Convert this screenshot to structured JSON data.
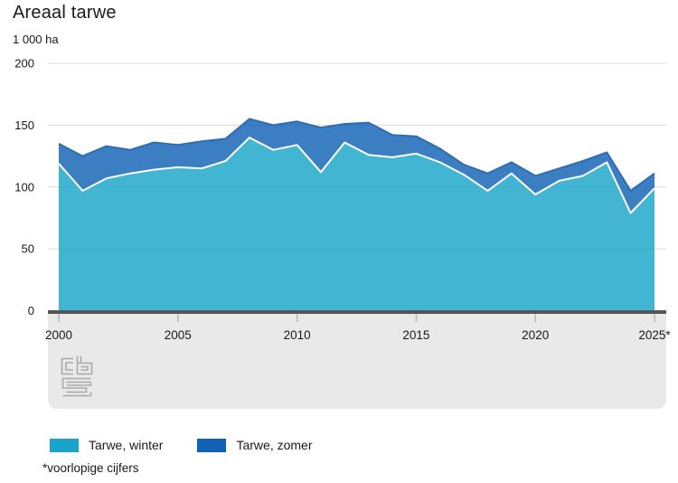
{
  "header": {
    "title": "Areaal tarwe",
    "unit": "1 000 ha"
  },
  "chart_data": {
    "type": "area",
    "stacked": true,
    "title": "Areaal tarwe",
    "ylabel": "1 000 ha",
    "xlabel": "",
    "grid": true,
    "legend_position": "bottom",
    "ylim": [
      0,
      200
    ],
    "yticks": [
      0,
      50,
      100,
      150,
      200
    ],
    "xticks": [
      2000,
      2005,
      2010,
      2015,
      2020,
      2025
    ],
    "xtick_labels": [
      "2000",
      "2005",
      "2010",
      "2015",
      "2020",
      "2025*"
    ],
    "x": [
      2000,
      2001,
      2002,
      2003,
      2004,
      2005,
      2006,
      2007,
      2008,
      2009,
      2010,
      2011,
      2012,
      2013,
      2014,
      2015,
      2016,
      2017,
      2018,
      2019,
      2020,
      2021,
      2022,
      2023,
      2024,
      2025
    ],
    "series": [
      {
        "name": "Tarwe, winter",
        "color": "#18a5c9",
        "edge_color": "#ffffff",
        "values": [
          119,
          97,
          107,
          111,
          114,
          116,
          115,
          121,
          140,
          130,
          134,
          112,
          136,
          126,
          124,
          127,
          120,
          110,
          97,
          111,
          94,
          105,
          109,
          120,
          79,
          99
        ]
      },
      {
        "name": "Tarwe, zomer",
        "color": "#1161b4",
        "edge_color": "#2e6cb5",
        "values": [
          16,
          28,
          26,
          19,
          22,
          18,
          22,
          18,
          15,
          20,
          19,
          36,
          15,
          26,
          18,
          14,
          11,
          8,
          14,
          9,
          15,
          10,
          12,
          8,
          18,
          12
        ]
      }
    ]
  },
  "notes": {
    "footnote": "*voorlopige cijfers"
  },
  "colors": {
    "axis_line": "#555555",
    "grid_line": "#d9d9d9",
    "tick_mark": "#b9b9b9",
    "plot_band_bg": "#e9e9e9",
    "label_text": "#1a1a1a",
    "logo_outline": "#a9a9a9",
    "area_fill_opacity": 0.82
  }
}
